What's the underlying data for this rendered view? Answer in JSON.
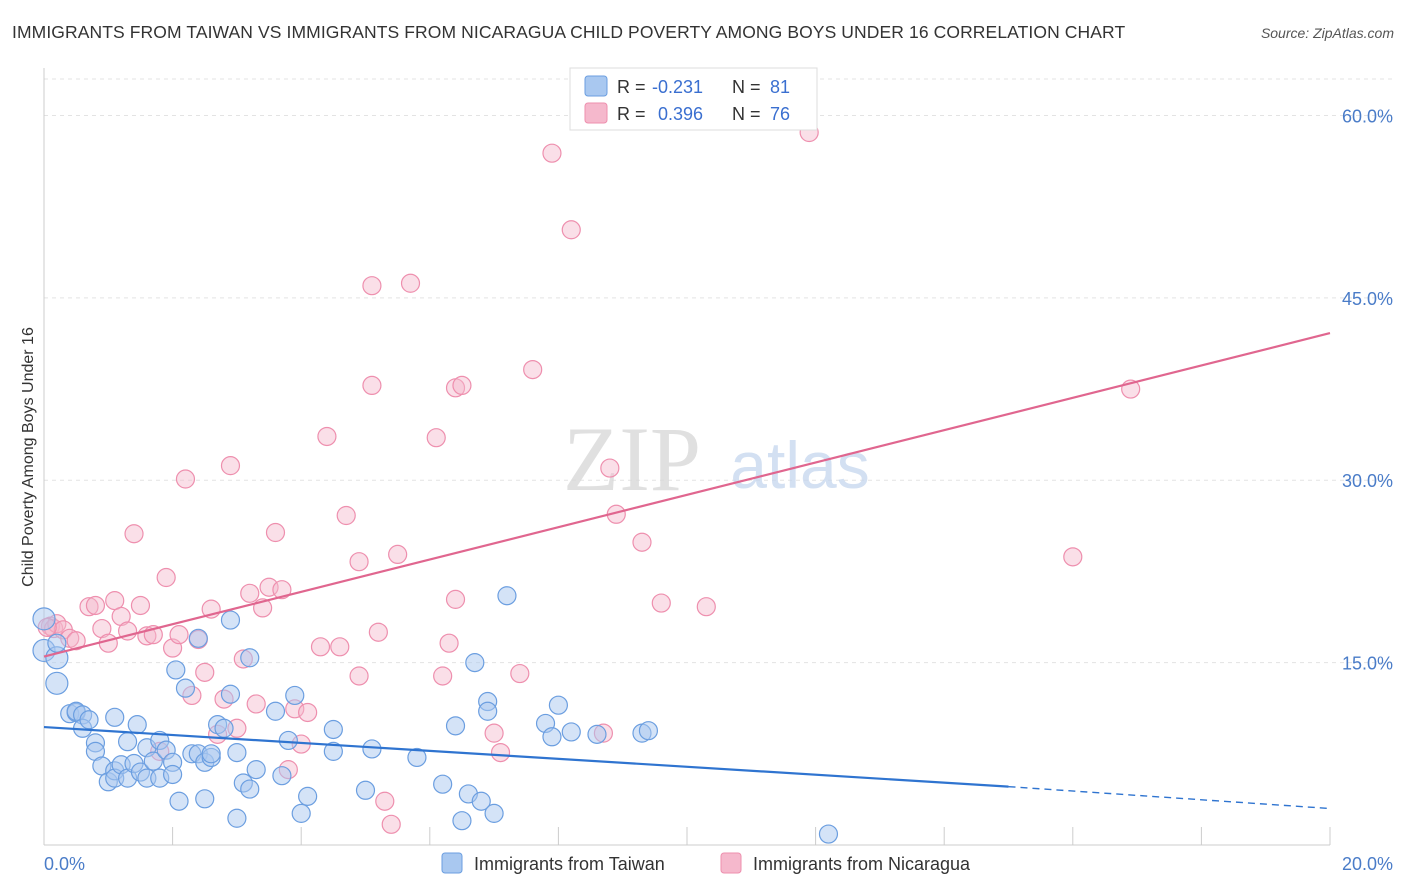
{
  "header": {
    "title": "IMMIGRANTS FROM TAIWAN VS IMMIGRANTS FROM NICARAGUA CHILD POVERTY AMONG BOYS UNDER 16 CORRELATION CHART",
    "source": "Source: ZipAtlas.com"
  },
  "watermark": {
    "zip": "ZIP",
    "atlas": "atlas"
  },
  "legend": {
    "r_label": "R =",
    "n_label": "N =",
    "taiwan": {
      "r": "-0.231",
      "n": "81"
    },
    "nicaragua": {
      "r": "0.396",
      "n": "76"
    }
  },
  "colors": {
    "taiwan_fill": "#a9c8f0",
    "taiwan_stroke": "#6b9ee0",
    "taiwan_line": "#2f74d0",
    "nicaragua_fill": "#f5b8cc",
    "nicaragua_stroke": "#ee8fae",
    "nicaragua_line": "#e0668f"
  },
  "chart_data": {
    "type": "scatter",
    "ylabel": "Child Poverty Among Boys Under 16",
    "xlim": [
      0,
      20
    ],
    "ylim": [
      0,
      63
    ],
    "y_ticks": [
      15,
      30,
      45,
      60
    ],
    "y_tick_labels": [
      "15.0%",
      "30.0%",
      "45.0%",
      "60.0%"
    ],
    "x_tick_labels": [
      "0.0%",
      "20.0%"
    ],
    "grid": true,
    "legend_position": "top-center",
    "series": [
      {
        "name": "Immigrants from Taiwan",
        "trend": {
          "x0": 0,
          "y0": 9.7,
          "x1": 15,
          "y1": 4.8,
          "dash_to_x": 20,
          "dash_to_y": 3.0
        },
        "points": [
          [
            0.0,
            18.6
          ],
          [
            0.0,
            16.0
          ],
          [
            0.2,
            15.4
          ],
          [
            0.2,
            13.3
          ],
          [
            0.2,
            16.6
          ],
          [
            0.4,
            10.8
          ],
          [
            0.5,
            10.9
          ],
          [
            0.5,
            11.0
          ],
          [
            0.6,
            10.7
          ],
          [
            0.6,
            9.6
          ],
          [
            0.7,
            10.3
          ],
          [
            0.8,
            8.4
          ],
          [
            0.8,
            7.7
          ],
          [
            0.9,
            6.5
          ],
          [
            1.0,
            5.2
          ],
          [
            1.1,
            6.1
          ],
          [
            1.1,
            5.5
          ],
          [
            1.1,
            10.5
          ],
          [
            1.2,
            6.6
          ],
          [
            1.3,
            5.5
          ],
          [
            1.3,
            8.5
          ],
          [
            1.4,
            6.7
          ],
          [
            1.45,
            9.9
          ],
          [
            1.5,
            6.0
          ],
          [
            1.6,
            5.5
          ],
          [
            1.6,
            8.0
          ],
          [
            1.7,
            6.9
          ],
          [
            1.8,
            5.5
          ],
          [
            1.8,
            8.6
          ],
          [
            1.9,
            7.8
          ],
          [
            2.0,
            6.8
          ],
          [
            2.0,
            5.8
          ],
          [
            2.05,
            14.4
          ],
          [
            2.1,
            3.6
          ],
          [
            2.2,
            12.9
          ],
          [
            2.3,
            7.5
          ],
          [
            2.4,
            17.0
          ],
          [
            2.4,
            7.5
          ],
          [
            2.5,
            3.8
          ],
          [
            2.5,
            6.8
          ],
          [
            2.6,
            7.2
          ],
          [
            2.6,
            7.5
          ],
          [
            2.7,
            9.9
          ],
          [
            2.8,
            9.6
          ],
          [
            2.9,
            12.4
          ],
          [
            2.9,
            18.5
          ],
          [
            3.0,
            2.2
          ],
          [
            3.0,
            7.6
          ],
          [
            3.1,
            5.1
          ],
          [
            3.2,
            4.6
          ],
          [
            3.2,
            15.4
          ],
          [
            3.3,
            6.2
          ],
          [
            3.6,
            11.0
          ],
          [
            3.7,
            5.7
          ],
          [
            3.8,
            8.6
          ],
          [
            3.9,
            12.3
          ],
          [
            4.0,
            2.6
          ],
          [
            4.1,
            4.0
          ],
          [
            4.5,
            9.5
          ],
          [
            4.5,
            7.7
          ],
          [
            5.0,
            4.5
          ],
          [
            5.1,
            7.9
          ],
          [
            5.8,
            7.2
          ],
          [
            6.2,
            5.0
          ],
          [
            6.4,
            9.8
          ],
          [
            6.5,
            2.0
          ],
          [
            6.6,
            4.2
          ],
          [
            6.7,
            15.0
          ],
          [
            6.8,
            3.6
          ],
          [
            6.9,
            11.8
          ],
          [
            6.9,
            11.0
          ],
          [
            7.0,
            2.6
          ],
          [
            7.2,
            20.5
          ],
          [
            7.8,
            10.0
          ],
          [
            7.9,
            8.9
          ],
          [
            8.0,
            11.5
          ],
          [
            8.2,
            9.3
          ],
          [
            8.6,
            9.1
          ],
          [
            9.3,
            9.2
          ],
          [
            9.4,
            9.4
          ],
          [
            12.2,
            0.9
          ]
        ]
      },
      {
        "name": "Immigrants from Nicaragua",
        "trend": {
          "x0": 0,
          "y0": 15.5,
          "x1": 20,
          "y1": 42.1
        },
        "points": [
          [
            0.1,
            18.0
          ],
          [
            0.15,
            17.8
          ],
          [
            0.2,
            18.2
          ],
          [
            0.3,
            17.7
          ],
          [
            0.4,
            17.0
          ],
          [
            0.5,
            16.8
          ],
          [
            0.7,
            19.6
          ],
          [
            0.8,
            19.7
          ],
          [
            0.9,
            17.8
          ],
          [
            1.0,
            16.6
          ],
          [
            1.1,
            20.1
          ],
          [
            1.2,
            18.8
          ],
          [
            1.3,
            17.6
          ],
          [
            1.4,
            25.6
          ],
          [
            1.5,
            19.7
          ],
          [
            1.6,
            17.2
          ],
          [
            1.7,
            17.3
          ],
          [
            1.8,
            7.7
          ],
          [
            1.9,
            22.0
          ],
          [
            2.0,
            16.2
          ],
          [
            2.1,
            17.3
          ],
          [
            2.2,
            30.1
          ],
          [
            2.3,
            12.3
          ],
          [
            2.4,
            16.9
          ],
          [
            2.5,
            14.2
          ],
          [
            2.6,
            19.4
          ],
          [
            2.7,
            9.1
          ],
          [
            2.8,
            12.0
          ],
          [
            2.9,
            31.2
          ],
          [
            3.0,
            9.6
          ],
          [
            3.1,
            15.3
          ],
          [
            3.2,
            20.7
          ],
          [
            3.3,
            11.6
          ],
          [
            3.4,
            19.5
          ],
          [
            3.5,
            21.2
          ],
          [
            3.6,
            25.7
          ],
          [
            3.7,
            21.0
          ],
          [
            3.8,
            6.2
          ],
          [
            3.9,
            11.2
          ],
          [
            4.0,
            8.3
          ],
          [
            4.1,
            10.9
          ],
          [
            4.3,
            16.3
          ],
          [
            4.4,
            33.6
          ],
          [
            4.6,
            16.3
          ],
          [
            4.7,
            27.1
          ],
          [
            4.9,
            23.3
          ],
          [
            4.9,
            13.9
          ],
          [
            5.1,
            37.8
          ],
          [
            5.1,
            46.0
          ],
          [
            5.2,
            17.5
          ],
          [
            5.3,
            3.6
          ],
          [
            5.4,
            1.7
          ],
          [
            5.5,
            23.9
          ],
          [
            5.7,
            46.2
          ],
          [
            6.1,
            33.5
          ],
          [
            6.2,
            13.9
          ],
          [
            6.3,
            16.6
          ],
          [
            6.4,
            20.2
          ],
          [
            6.4,
            37.6
          ],
          [
            6.5,
            37.8
          ],
          [
            7.0,
            9.2
          ],
          [
            7.1,
            7.6
          ],
          [
            7.4,
            14.1
          ],
          [
            7.6,
            39.1
          ],
          [
            7.9,
            56.9
          ],
          [
            8.2,
            50.6
          ],
          [
            8.7,
            9.2
          ],
          [
            8.8,
            31.0
          ],
          [
            8.9,
            27.2
          ],
          [
            9.3,
            24.9
          ],
          [
            9.6,
            19.9
          ],
          [
            10.3,
            19.6
          ],
          [
            11.9,
            58.6
          ],
          [
            16.0,
            23.7
          ],
          [
            16.9,
            37.5
          ],
          [
            0.05,
            17.9
          ]
        ]
      }
    ]
  },
  "bottom_legend": {
    "taiwan": "Immigrants from Taiwan",
    "nicaragua": "Immigrants from Nicaragua"
  }
}
